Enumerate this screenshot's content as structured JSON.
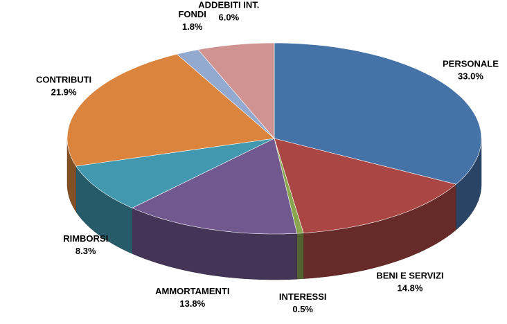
{
  "chart_data": {
    "type": "pie3d",
    "categories": [
      "PERSONALE",
      "BENI E SERVIZI",
      "INTERESSI",
      "AMMORTAMENTI",
      "RIMBORSI",
      "CONTRIBUTI",
      "FONDI",
      "ADDEBITI INT."
    ],
    "values": [
      33.0,
      14.8,
      0.5,
      13.8,
      8.3,
      21.9,
      1.8,
      6.0
    ],
    "value_labels": [
      "33.0%",
      "14.8%",
      "0.5%",
      "13.8%",
      "8.3%",
      "21.9%",
      "1.8%",
      "6.0%"
    ],
    "colors": [
      "#4572a7",
      "#aa4643",
      "#89a54e",
      "#71588f",
      "#4198af",
      "#db843d",
      "#93a9cf",
      "#d19392"
    ]
  }
}
